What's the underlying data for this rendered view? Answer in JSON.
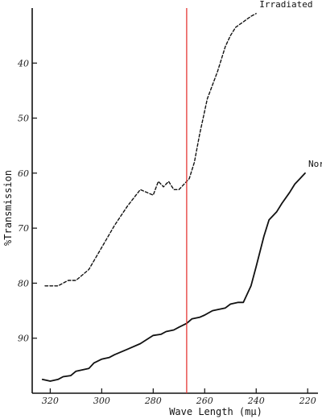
{
  "chart_data": {
    "type": "line",
    "title": "",
    "xlabel": "Wave Length (mμ)",
    "ylabel": "%Transmission",
    "x_reversed": true,
    "xlim": [
      327,
      216
    ],
    "ylim": [
      30,
      100
    ],
    "y_inverted": true,
    "x_ticks": [
      320,
      300,
      280,
      260,
      240,
      220
    ],
    "y_ticks": [
      40,
      50,
      60,
      70,
      80,
      90
    ],
    "series": [
      {
        "name": "Irradiated",
        "style": "dashed",
        "x": [
          322,
          317,
          313,
          310,
          305,
          300,
          295,
          290,
          285,
          280,
          278,
          276,
          274,
          272,
          270,
          268,
          266,
          264,
          262,
          259,
          255,
          252,
          250,
          248,
          245,
          242,
          240
        ],
        "y": [
          80.5,
          80.5,
          79.5,
          79.5,
          77.5,
          73.5,
          69.5,
          66,
          63,
          64,
          61.5,
          62.5,
          61.5,
          63,
          63,
          62,
          61,
          58,
          53,
          46.5,
          41.5,
          37,
          35,
          33.5,
          32.5,
          31.5,
          31
        ]
      },
      {
        "name": "Normal",
        "style": "solid",
        "x": [
          323,
          320,
          317,
          315,
          312,
          310,
          305,
          303,
          300,
          297,
          295,
          290,
          285,
          280,
          277,
          275,
          272,
          270,
          267,
          265,
          262,
          260,
          257,
          255,
          252,
          250,
          247,
          245,
          242,
          240,
          237,
          235,
          232,
          230,
          227,
          225,
          223,
          221
        ],
        "y": [
          97.5,
          97.8,
          97.5,
          97,
          96.8,
          96,
          95.5,
          94.5,
          93.8,
          93.5,
          93,
          92,
          91,
          89.5,
          89.3,
          88.8,
          88.5,
          88,
          87.3,
          86.5,
          86.2,
          85.8,
          85,
          84.8,
          84.5,
          83.8,
          83.5,
          83.5,
          80.5,
          77,
          71.5,
          68.5,
          67,
          65.5,
          63.5,
          62,
          61,
          60
        ]
      }
    ],
    "annotations": [
      {
        "type": "vertical-line",
        "x": 267,
        "color": "#e53935"
      }
    ]
  },
  "colors": {
    "ink": "#111111",
    "marker_line": "#e53935"
  }
}
